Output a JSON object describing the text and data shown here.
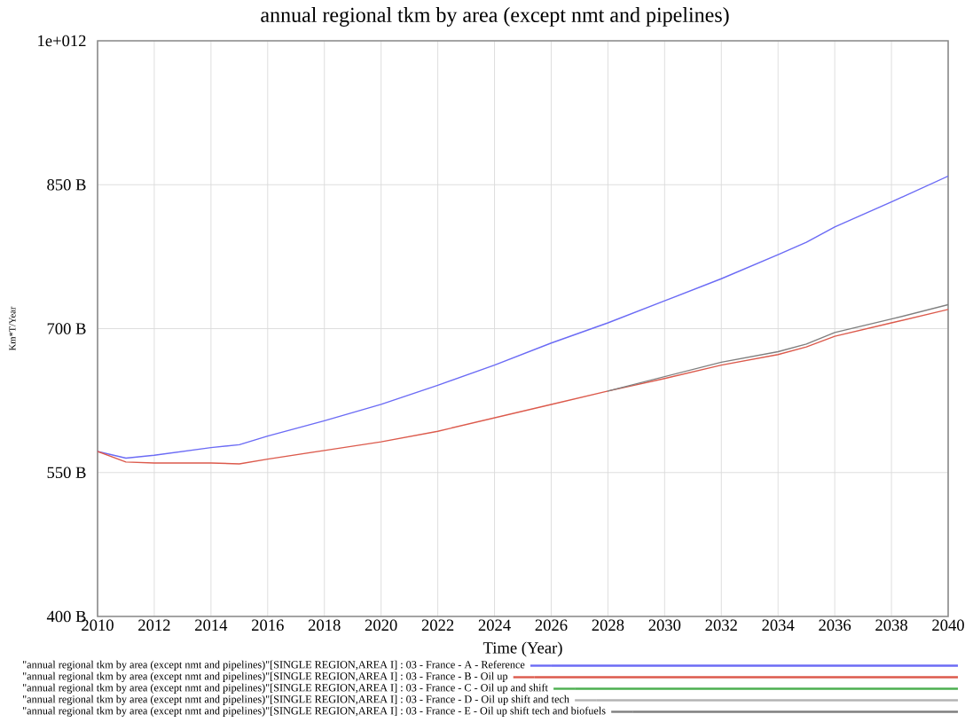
{
  "chart_data": {
    "type": "line",
    "title": "annual regional tkm by area (except nmt and pipelines)",
    "xlabel": "Time (Year)",
    "ylabel": "Km*T/Year",
    "x": [
      2010,
      2011,
      2012,
      2014,
      2015,
      2016,
      2018,
      2020,
      2022,
      2024,
      2026,
      2028,
      2030,
      2032,
      2034,
      2035,
      2036,
      2038,
      2040
    ],
    "series": [
      {
        "name": "\"annual regional tkm by area (except nmt and pipelines)\"[SINGLE REGION,AREA I] : 03 - France - A - Reference",
        "color": "#6b6bf5",
        "values": [
          572000000000,
          565000000000,
          568000000000,
          576000000000,
          579000000000,
          588000000000,
          604000000000,
          621000000000,
          641000000000,
          662000000000,
          685000000000,
          706000000000,
          729000000000,
          752000000000,
          777000000000,
          790000000000,
          806000000000,
          832000000000,
          859000000000
        ]
      },
      {
        "name": "\"annual regional tkm by area (except nmt and pipelines)\"[SINGLE REGION,AREA I] : 03 - France - B - Oil up",
        "color": "#dc5a4c",
        "values": [
          572000000000,
          561000000000,
          560000000000,
          560000000000,
          559000000000,
          564000000000,
          573000000000,
          582000000000,
          593000000000,
          607000000000,
          621000000000,
          635000000000,
          648000000000,
          662000000000,
          673000000000,
          681000000000,
          692000000000,
          706000000000,
          720000000000
        ]
      },
      {
        "name": "\"annual regional tkm by area (except nmt and pipelines)\"[SINGLE REGION,AREA I] : 03 - France - C - Oil up and shift",
        "color": "#4caf50",
        "values": [
          null,
          null,
          null,
          null,
          null,
          null,
          null,
          null,
          null,
          null,
          null,
          null,
          null,
          null,
          null,
          null,
          null,
          null,
          null
        ]
      },
      {
        "name": "\"annual regional tkm by area (except nmt and pipelines)\"[SINGLE REGION,AREA I] : 03 - France - D - Oil up shift and tech",
        "color": "#b4b4b4",
        "values": [
          null,
          null,
          null,
          null,
          null,
          null,
          null,
          null,
          null,
          null,
          null,
          null,
          null,
          null,
          null,
          null,
          null,
          null,
          null
        ]
      },
      {
        "name": "\"annual regional tkm by area (except nmt and pipelines)\"[SINGLE REGION,AREA I] : 03 - France - E - Oil up shift tech and biofuels",
        "color": "#7f7f7f",
        "values": [
          null,
          null,
          null,
          null,
          null,
          null,
          null,
          null,
          null,
          null,
          null,
          635000000000,
          650000000000,
          665000000000,
          676000000000,
          684000000000,
          696000000000,
          710000000000,
          725000000000
        ]
      }
    ],
    "xlim": [
      2010,
      2040
    ],
    "xticks": [
      2010,
      2012,
      2014,
      2016,
      2018,
      2020,
      2022,
      2024,
      2026,
      2028,
      2030,
      2032,
      2034,
      2036,
      2038,
      2040
    ],
    "ylim": [
      400000000000,
      1000000000000
    ],
    "yticks": [
      {
        "value": 400000000000,
        "label": "400 B"
      },
      {
        "value": 550000000000,
        "label": "550 B"
      },
      {
        "value": 700000000000,
        "label": "700 B"
      },
      {
        "value": 850000000000,
        "label": "850 B"
      },
      {
        "value": 1000000000000,
        "label": "1e+012"
      }
    ],
    "grid": true,
    "legend": "bottom"
  }
}
